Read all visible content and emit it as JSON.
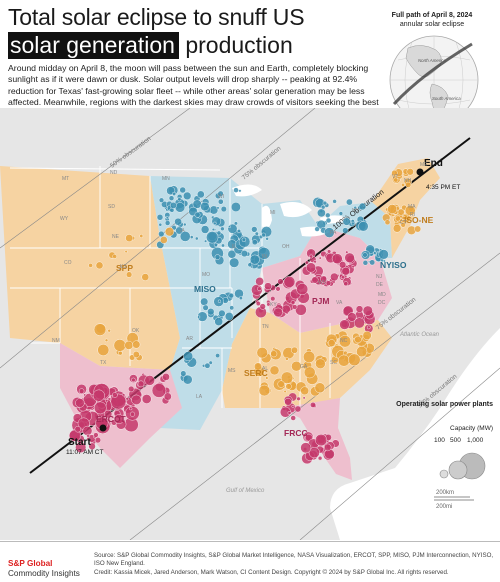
{
  "title": {
    "line1": "Total solar eclipse to snuff US",
    "highlight": "solar generation",
    "line2_rest": "production"
  },
  "lede": "Around midday on April 8, the moon will pass between the sun and Earth, completely blocking sunlight as if it were dawn or dusk. Solar output levels will drop sharply -- peaking at 92.4% reduction for Texas' fast-growing solar fleet -- while other areas' solar generation may be less affected. Meanwhile, regions with the darkest skies may draw crowds of visitors seeking the best views of the eclipse, stressing power infrastructure in the eclipse's path.",
  "globe": {
    "caption_bold": "Full path of April 8, 2024",
    "caption_rest": "annular solar eclipse",
    "labels": [
      "North America",
      "South America"
    ]
  },
  "map": {
    "obscuration_labels": [
      "50% obscuration",
      "75% obscuration",
      "100% Obscuration",
      "75% obscuration",
      "50% obscuration"
    ],
    "start": {
      "label": "Start",
      "time": "11:07 AM CT"
    },
    "end": {
      "label": "End",
      "time": "4:35 PM ET"
    },
    "regions": [
      {
        "name": "SPP",
        "color": "#e8a33d"
      },
      {
        "name": "MISO",
        "color": "#3c8fb0"
      },
      {
        "name": "PJM",
        "color": "#c4386b"
      },
      {
        "name": "NYISO",
        "color": "#3c8fb0"
      },
      {
        "name": "ISO-NE",
        "color": "#e8a33d"
      },
      {
        "name": "ERCOT",
        "color": "#c4386b"
      },
      {
        "name": "SERC",
        "color": "#e8a33d"
      },
      {
        "name": "FRCC",
        "color": "#c4386b"
      }
    ],
    "states": [
      "MT",
      "ND",
      "MN",
      "WI",
      "WY",
      "SD",
      "NE",
      "IA",
      "CO",
      "KS",
      "MO",
      "IL",
      "IN",
      "OH",
      "MI",
      "PA",
      "NY",
      "VT",
      "NH",
      "ME",
      "MA",
      "RI",
      "CT",
      "NJ",
      "DE",
      "MD",
      "DC",
      "WV",
      "VA",
      "KY",
      "TN",
      "NC",
      "SC",
      "GA",
      "AL",
      "MS",
      "AR",
      "LA",
      "OK",
      "TX",
      "NM"
    ],
    "water_labels": [
      "Atlantic Ocean",
      "Gulf of Mexico"
    ],
    "legend": {
      "title": "Operating solar power plants",
      "unit": "Capacity (MW)",
      "sizes": [
        "100",
        "500",
        "1,000"
      ]
    },
    "scale": [
      "200km",
      "200mi"
    ]
  },
  "footer": {
    "brand_line1": "S&P Global",
    "brand_line2": "Commodity Insights",
    "source": "Source: S&P Global Commodity Insights, S&P Global Market Intelligence, NASA Visualization, ERCOT, SPP, MISO, PJM Interconnection, NYISO, ISO New England.",
    "credit": "Credit: Kassia Micek, Jared Anderson, Mark Watson, CI Content Design.  Copyright © 2024 by S&P Global Inc.  All rights reserved."
  },
  "colors": {
    "spp_fill": "#f6d3a2",
    "miso_fill": "#bfdde8",
    "pjm_fill": "#eebfce",
    "ercot_fill": "#eebfce",
    "serc_fill": "#f6d3a2",
    "non_rto_fill": "#e6e6e6",
    "ocean": "#ffffff"
  }
}
